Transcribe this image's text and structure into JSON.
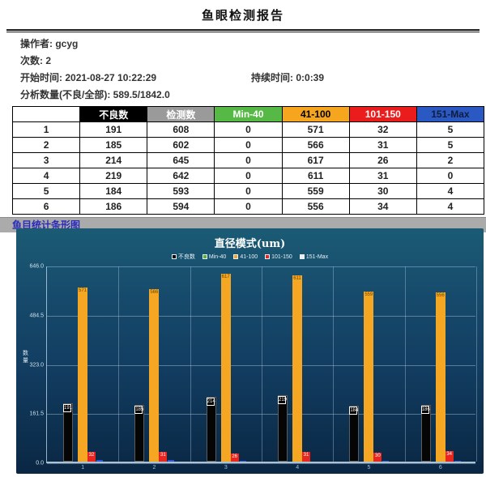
{
  "report": {
    "title": "鱼眼检测报告",
    "info": {
      "operator_label": "操作者:",
      "operator_value": "gcyg",
      "count_label": "次数:",
      "count_value": "2",
      "start_label": "开始时间:",
      "start_value": "2021-08-27 10:22:29",
      "duration_label": "持续时间:",
      "duration_value": "0:0:39",
      "quantity_label": "分析数量(不良/全部):",
      "quantity_value": "589.5/1842.0"
    }
  },
  "table": {
    "headers": [
      "",
      "不良数",
      "检测数",
      "Min-40",
      "41-100",
      "101-150",
      "151-Max"
    ],
    "header_styles": [
      {
        "bg": "#ffffff",
        "fg": "#000000"
      },
      {
        "bg": "#000000",
        "fg": "#ffffff"
      },
      {
        "bg": "#9a9a9a",
        "fg": "#ffffff"
      },
      {
        "bg": "#56b946",
        "fg": "#ffffff"
      },
      {
        "bg": "#f6a51f",
        "fg": "#000000"
      },
      {
        "bg": "#ea1c1c",
        "fg": "#ffffff"
      },
      {
        "bg": "#2b59c3",
        "fg": "#101c3a"
      }
    ],
    "rows": [
      [
        "1",
        "191",
        "608",
        "0",
        "571",
        "32",
        "5"
      ],
      [
        "2",
        "185",
        "602",
        "0",
        "566",
        "31",
        "5"
      ],
      [
        "3",
        "214",
        "645",
        "0",
        "617",
        "26",
        "2"
      ],
      [
        "4",
        "219",
        "642",
        "0",
        "611",
        "31",
        "0"
      ],
      [
        "5",
        "184",
        "593",
        "0",
        "559",
        "30",
        "4"
      ],
      [
        "6",
        "186",
        "594",
        "0",
        "556",
        "34",
        "4"
      ]
    ]
  },
  "section": {
    "chart_section_title": "鱼目统计条形图"
  },
  "chart_data": {
    "type": "bar",
    "title": "直径模式(um)",
    "ylabel": "数量",
    "categories": [
      "1",
      "2",
      "3",
      "4",
      "5",
      "6"
    ],
    "series": [
      {
        "name": "不良数",
        "color": "#050505",
        "legend_color": "#050505",
        "values": [
          191,
          185,
          214,
          219,
          184,
          186
        ]
      },
      {
        "name": "Min-40",
        "color": "#4db53c",
        "legend_color": "#4db53c",
        "values": [
          0,
          0,
          0,
          0,
          0,
          0
        ]
      },
      {
        "name": "41-100",
        "color": "#f5a623",
        "legend_color": "#f5a623",
        "values": [
          571,
          566,
          617,
          611,
          559,
          556
        ]
      },
      {
        "name": "101-150",
        "color": "#e8251f",
        "legend_color": "#e8251f",
        "values": [
          32,
          31,
          26,
          31,
          30,
          34
        ]
      },
      {
        "name": "151-Max",
        "color": "#2f55d4",
        "legend_color": "#e9eef2",
        "values": [
          5,
          5,
          2,
          0,
          4,
          4
        ]
      }
    ],
    "ylim": [
      0,
      646
    ],
    "yticks": [
      "646.0",
      "484.5",
      "323.0",
      "161.5",
      "0.0"
    ],
    "legend_position": "top",
    "grid": true,
    "background": {
      "top": "#1b5b74",
      "bottom": "#0a2744"
    }
  }
}
